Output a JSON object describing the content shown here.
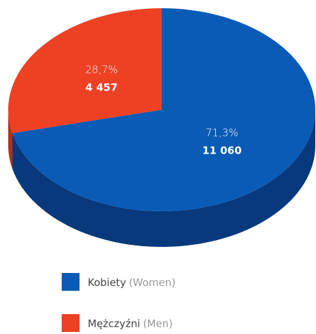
{
  "chart_data": {
    "type": "pie",
    "categories": [
      "Kobiety",
      "Mężczyźni"
    ],
    "category_translations": [
      "(Women)",
      "(Men)"
    ],
    "values": [
      71.3,
      28.7
    ],
    "value_labels": [
      "71,3%",
      "28,7%"
    ],
    "counts": [
      11060,
      4457
    ],
    "count_labels": [
      "11 060",
      "4 457"
    ],
    "colors": [
      "#0a5bb5",
      "#ee4123"
    ],
    "side_colors": [
      "#07397c",
      "#b3301a"
    ],
    "legend": "bottom"
  }
}
